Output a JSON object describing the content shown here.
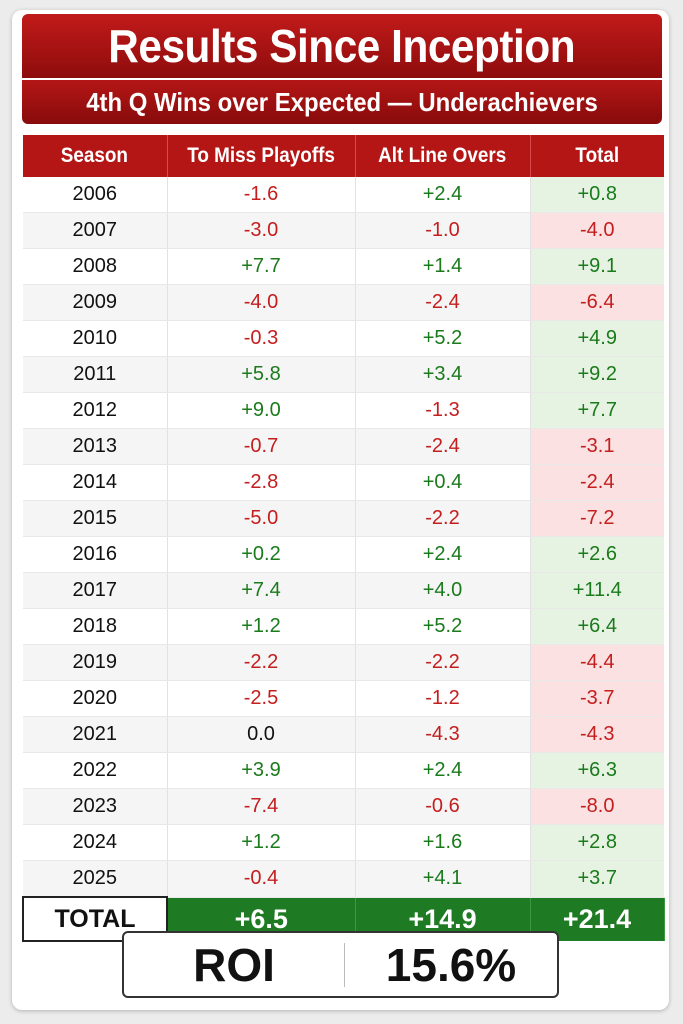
{
  "title": "Results Since Inception",
  "subtitle": "4th Q Wins over Expected — Underachievers",
  "columns": [
    "Season",
    "To Miss Playoffs",
    "Alt Line Overs",
    "Total"
  ],
  "rows": [
    {
      "season": "2006",
      "miss": "-1.6",
      "alt": "+2.4",
      "total": "+0.8"
    },
    {
      "season": "2007",
      "miss": "-3.0",
      "alt": "-1.0",
      "total": "-4.0"
    },
    {
      "season": "2008",
      "miss": "+7.7",
      "alt": "+1.4",
      "total": "+9.1"
    },
    {
      "season": "2009",
      "miss": "-4.0",
      "alt": "-2.4",
      "total": "-6.4"
    },
    {
      "season": "2010",
      "miss": "-0.3",
      "alt": "+5.2",
      "total": "+4.9"
    },
    {
      "season": "2011",
      "miss": "+5.8",
      "alt": "+3.4",
      "total": "+9.2"
    },
    {
      "season": "2012",
      "miss": "+9.0",
      "alt": "-1.3",
      "total": "+7.7"
    },
    {
      "season": "2013",
      "miss": "-0.7",
      "alt": "-2.4",
      "total": "-3.1"
    },
    {
      "season": "2014",
      "miss": "-2.8",
      "alt": "+0.4",
      "total": "-2.4"
    },
    {
      "season": "2015",
      "miss": "-5.0",
      "alt": "-2.2",
      "total": "-7.2"
    },
    {
      "season": "2016",
      "miss": "+0.2",
      "alt": "+2.4",
      "total": "+2.6"
    },
    {
      "season": "2017",
      "miss": "+7.4",
      "alt": "+4.0",
      "total": "+11.4"
    },
    {
      "season": "2018",
      "miss": "+1.2",
      "alt": "+5.2",
      "total": "+6.4"
    },
    {
      "season": "2019",
      "miss": "-2.2",
      "alt": "-2.2",
      "total": "-4.4"
    },
    {
      "season": "2020",
      "miss": "-2.5",
      "alt": "-1.2",
      "total": "-3.7"
    },
    {
      "season": "2021",
      "miss": "0.0",
      "alt": "-4.3",
      "total": "-4.3"
    },
    {
      "season": "2022",
      "miss": "+3.9",
      "alt": "+2.4",
      "total": "+6.3"
    },
    {
      "season": "2023",
      "miss": "-7.4",
      "alt": "-0.6",
      "total": "-8.0"
    },
    {
      "season": "2024",
      "miss": "+1.2",
      "alt": "+1.6",
      "total": "+2.8"
    },
    {
      "season": "2025",
      "miss": "-0.4",
      "alt": "+4.1",
      "total": "+3.7"
    }
  ],
  "totals": {
    "label": "TOTAL",
    "miss": "+6.5",
    "alt": "+14.9",
    "total": "+21.4"
  },
  "roi": {
    "label": "ROI",
    "value": "15.6%"
  },
  "colors": {
    "header_red": "#b41616",
    "positive_green": "#1b7a1b",
    "negative_red": "#c41e1e",
    "total_green_bg": "#1f7a24",
    "positive_total_bg": "#e6f3e3",
    "negative_total_bg": "#fbe1e1"
  }
}
